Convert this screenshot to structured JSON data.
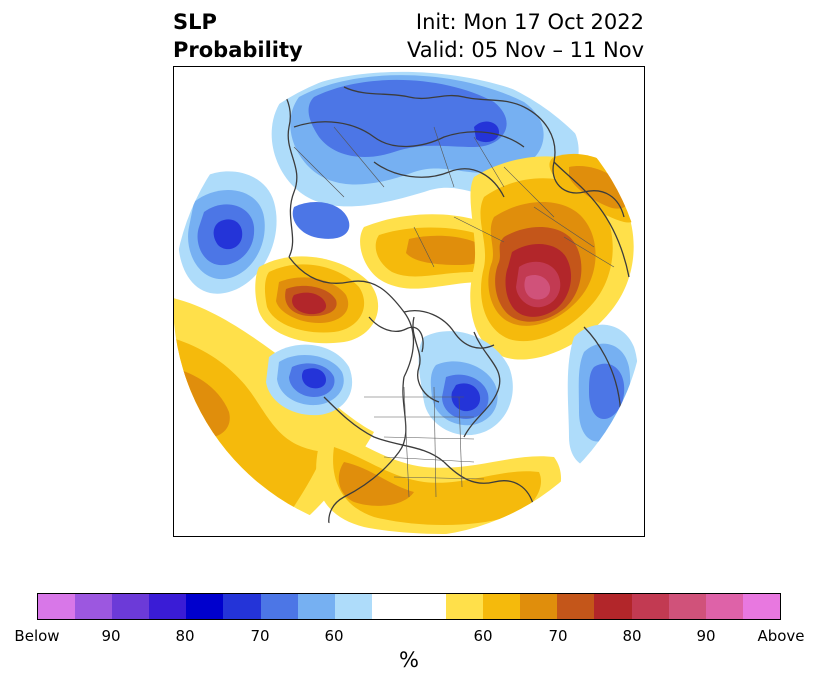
{
  "title": {
    "left_line1": "SLP",
    "left_line2": "Probability",
    "right_line1": "Init: Mon 17 Oct 2022",
    "right_line2": "Valid: 05 Nov – 11 Nov"
  },
  "colorbar": {
    "colors": [
      "#d877e8",
      "#9c57e0",
      "#6c3ad8",
      "#3a1cd6",
      "#0000cd",
      "#2434d8",
      "#4c76e6",
      "#76b0f2",
      "#aedcfa",
      "#ffffff",
      "#ffe04a",
      "#f5ba0c",
      "#e08e0c",
      "#c4561a",
      "#b2262a",
      "#c23a52",
      "#d0527a",
      "#de62a8",
      "#e878e0"
    ],
    "tick_labels": [
      "Below",
      "90",
      "80",
      "70",
      "60",
      "60",
      "70",
      "80",
      "90",
      "Above"
    ],
    "units_label": "%"
  },
  "map_colors": {
    "ocean_bg": "#ffffff",
    "coast": "#3c3c3c",
    "below_light": "#aedcfa",
    "below_mid": "#76b0f2",
    "below_strong": "#4c76e6",
    "below_deep": "#2434d8",
    "above_light": "#ffe04a",
    "above_mid": "#f5ba0c",
    "above_strong": "#e08e0c",
    "above_deep": "#c4561a",
    "above_red": "#b2262a",
    "above_magenta": "#c23a52"
  }
}
